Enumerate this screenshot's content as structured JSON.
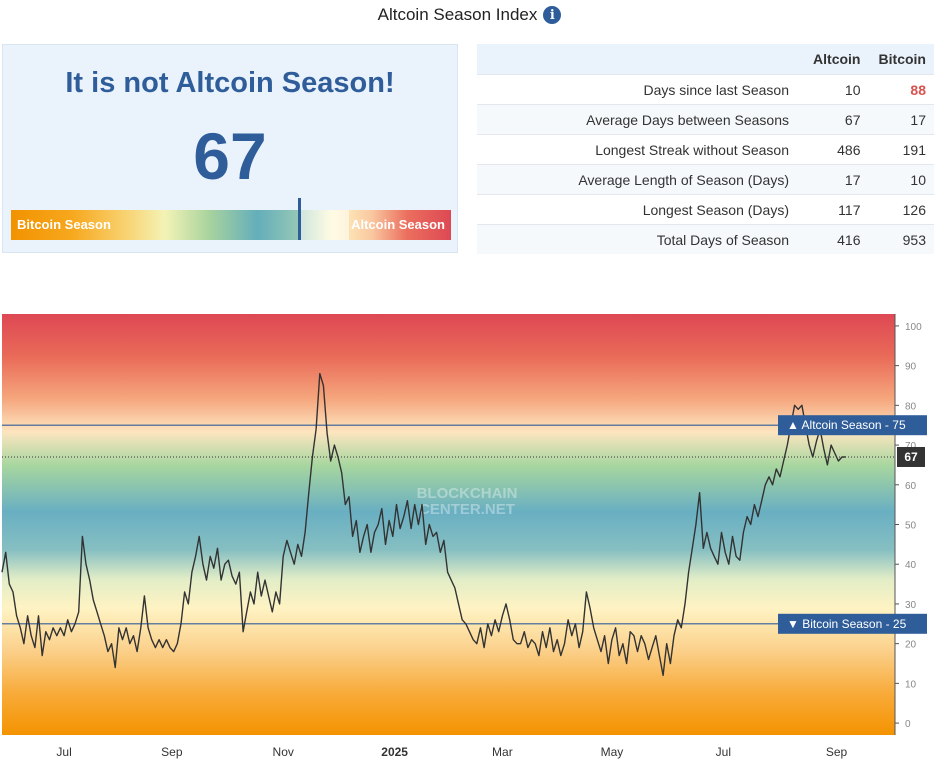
{
  "page": {
    "title": "Altcoin Season Index",
    "info_icon": "info-icon"
  },
  "status": {
    "headline": "It is not Altcoin Season!",
    "index_value": "67",
    "gauge": {
      "left_label": "Bitcoin Season",
      "right_label": "Altcoin Season",
      "value": 67,
      "min": 0,
      "max": 100,
      "colors": {
        "bitcoin": "#f29200",
        "altcoin": "#de4854",
        "marker": "#2f5d9a"
      }
    }
  },
  "stats": {
    "columns": [
      "",
      "Altcoin",
      "Bitcoin"
    ],
    "rows": [
      {
        "label": "Days since last Season",
        "altcoin": "10",
        "bitcoin": "88",
        "bitcoin_highlight": true
      },
      {
        "label": "Average Days between Seasons",
        "altcoin": "67",
        "bitcoin": "17"
      },
      {
        "label": "Longest Streak without Season",
        "altcoin": "486",
        "bitcoin": "191"
      },
      {
        "label": "Average Length of Season (Days)",
        "altcoin": "17",
        "bitcoin": "10"
      },
      {
        "label": "Longest Season (Days)",
        "altcoin": "117",
        "bitcoin": "126"
      },
      {
        "label": "Total Days of Season",
        "altcoin": "416",
        "bitcoin": "953"
      }
    ]
  },
  "chart_data": {
    "type": "line",
    "title": "Altcoin Season Index",
    "ylim": [
      0,
      100
    ],
    "y_ticks": [
      0,
      10,
      20,
      30,
      40,
      50,
      60,
      70,
      80,
      90,
      100
    ],
    "x_range_days": [
      0,
      489
    ],
    "x_tick_labels": [
      {
        "label": "Jul",
        "day": 34,
        "bold": false
      },
      {
        "label": "Sep",
        "day": 93,
        "bold": false
      },
      {
        "label": "Nov",
        "day": 154,
        "bold": false
      },
      {
        "label": "2025",
        "day": 215,
        "bold": true
      },
      {
        "label": "Mar",
        "day": 274,
        "bold": false
      },
      {
        "label": "May",
        "day": 334,
        "bold": false
      },
      {
        "label": "Jul",
        "day": 395,
        "bold": false
      },
      {
        "label": "Sep",
        "day": 457,
        "bold": false
      }
    ],
    "reference_lines": [
      {
        "label": "▲ Altcoin Season - 75",
        "value": 75
      },
      {
        "label": "▼ Bitcoin Season - 25",
        "value": 25
      }
    ],
    "current_value": {
      "label": "67",
      "value": 67
    },
    "watermark": [
      "BLOCKCHAIN",
      "CENTER.NET"
    ],
    "series": [
      {
        "name": "Altcoin Season Index",
        "color": "#333333",
        "points": [
          [
            0,
            38
          ],
          [
            2,
            43
          ],
          [
            4,
            35
          ],
          [
            6,
            33
          ],
          [
            8,
            27
          ],
          [
            10,
            24
          ],
          [
            12,
            20
          ],
          [
            14,
            27
          ],
          [
            16,
            22
          ],
          [
            18,
            19
          ],
          [
            20,
            27
          ],
          [
            22,
            17
          ],
          [
            24,
            23
          ],
          [
            26,
            21
          ],
          [
            28,
            24
          ],
          [
            30,
            22
          ],
          [
            32,
            24
          ],
          [
            34,
            22
          ],
          [
            36,
            26
          ],
          [
            38,
            23
          ],
          [
            40,
            25
          ],
          [
            42,
            28
          ],
          [
            44,
            47
          ],
          [
            46,
            40
          ],
          [
            48,
            36
          ],
          [
            50,
            31
          ],
          [
            52,
            28
          ],
          [
            54,
            25
          ],
          [
            56,
            22
          ],
          [
            58,
            18
          ],
          [
            60,
            20
          ],
          [
            62,
            14
          ],
          [
            64,
            24
          ],
          [
            66,
            21
          ],
          [
            68,
            24
          ],
          [
            70,
            20
          ],
          [
            72,
            22
          ],
          [
            74,
            18
          ],
          [
            76,
            24
          ],
          [
            78,
            32
          ],
          [
            80,
            24
          ],
          [
            82,
            21
          ],
          [
            84,
            19
          ],
          [
            86,
            21
          ],
          [
            88,
            19
          ],
          [
            90,
            21
          ],
          [
            92,
            19
          ],
          [
            94,
            18
          ],
          [
            96,
            20
          ],
          [
            98,
            25
          ],
          [
            100,
            33
          ],
          [
            102,
            30
          ],
          [
            104,
            38
          ],
          [
            106,
            42
          ],
          [
            108,
            47
          ],
          [
            110,
            40
          ],
          [
            112,
            36
          ],
          [
            114,
            42
          ],
          [
            116,
            39
          ],
          [
            118,
            44
          ],
          [
            120,
            36
          ],
          [
            122,
            40
          ],
          [
            124,
            41
          ],
          [
            126,
            37
          ],
          [
            128,
            35
          ],
          [
            130,
            38
          ],
          [
            132,
            23
          ],
          [
            134,
            28
          ],
          [
            136,
            33
          ],
          [
            138,
            30
          ],
          [
            140,
            38
          ],
          [
            142,
            32
          ],
          [
            144,
            36
          ],
          [
            146,
            32
          ],
          [
            148,
            28
          ],
          [
            150,
            33
          ],
          [
            152,
            30
          ],
          [
            154,
            42
          ],
          [
            156,
            46
          ],
          [
            158,
            43
          ],
          [
            160,
            40
          ],
          [
            162,
            45
          ],
          [
            164,
            42
          ],
          [
            166,
            48
          ],
          [
            168,
            58
          ],
          [
            170,
            67
          ],
          [
            172,
            74
          ],
          [
            174,
            88
          ],
          [
            176,
            85
          ],
          [
            178,
            73
          ],
          [
            180,
            66
          ],
          [
            182,
            70
          ],
          [
            184,
            67
          ],
          [
            186,
            63
          ],
          [
            188,
            55
          ],
          [
            190,
            57
          ],
          [
            192,
            47
          ],
          [
            194,
            51
          ],
          [
            196,
            43
          ],
          [
            198,
            47
          ],
          [
            200,
            50
          ],
          [
            202,
            43
          ],
          [
            204,
            48
          ],
          [
            206,
            50
          ],
          [
            208,
            54
          ],
          [
            210,
            45
          ],
          [
            212,
            51
          ],
          [
            214,
            47
          ],
          [
            216,
            55
          ],
          [
            218,
            49
          ],
          [
            220,
            52
          ],
          [
            222,
            56
          ],
          [
            224,
            49
          ],
          [
            226,
            55
          ],
          [
            228,
            50
          ],
          [
            230,
            55
          ],
          [
            232,
            45
          ],
          [
            234,
            50
          ],
          [
            236,
            47
          ],
          [
            238,
            48
          ],
          [
            240,
            43
          ],
          [
            242,
            46
          ],
          [
            244,
            38
          ],
          [
            246,
            36
          ],
          [
            248,
            34
          ],
          [
            250,
            30
          ],
          [
            252,
            26
          ],
          [
            254,
            25
          ],
          [
            256,
            23
          ],
          [
            258,
            21
          ],
          [
            260,
            20
          ],
          [
            262,
            24
          ],
          [
            264,
            19
          ],
          [
            266,
            25
          ],
          [
            268,
            22
          ],
          [
            270,
            26
          ],
          [
            272,
            23
          ],
          [
            274,
            27
          ],
          [
            276,
            30
          ],
          [
            278,
            26
          ],
          [
            280,
            21
          ],
          [
            282,
            20
          ],
          [
            284,
            20
          ],
          [
            286,
            23
          ],
          [
            288,
            19
          ],
          [
            290,
            21
          ],
          [
            292,
            20
          ],
          [
            294,
            17
          ],
          [
            296,
            23
          ],
          [
            298,
            19
          ],
          [
            300,
            24
          ],
          [
            302,
            18
          ],
          [
            304,
            21
          ],
          [
            306,
            17
          ],
          [
            308,
            20
          ],
          [
            310,
            26
          ],
          [
            312,
            22
          ],
          [
            314,
            25
          ],
          [
            316,
            19
          ],
          [
            318,
            23
          ],
          [
            320,
            33
          ],
          [
            322,
            29
          ],
          [
            324,
            24
          ],
          [
            326,
            21
          ],
          [
            328,
            18
          ],
          [
            330,
            22
          ],
          [
            332,
            15
          ],
          [
            334,
            21
          ],
          [
            336,
            24
          ],
          [
            338,
            17
          ],
          [
            340,
            20
          ],
          [
            342,
            15
          ],
          [
            344,
            23
          ],
          [
            346,
            22
          ],
          [
            348,
            18
          ],
          [
            350,
            22
          ],
          [
            352,
            20
          ],
          [
            354,
            16
          ],
          [
            356,
            19
          ],
          [
            358,
            22
          ],
          [
            360,
            17
          ],
          [
            362,
            12
          ],
          [
            364,
            20
          ],
          [
            366,
            15
          ],
          [
            368,
            22
          ],
          [
            370,
            26
          ],
          [
            372,
            24
          ],
          [
            374,
            30
          ],
          [
            376,
            38
          ],
          [
            378,
            44
          ],
          [
            380,
            50
          ],
          [
            382,
            58
          ],
          [
            384,
            44
          ],
          [
            386,
            48
          ],
          [
            388,
            44
          ],
          [
            390,
            42
          ],
          [
            392,
            40
          ],
          [
            394,
            48
          ],
          [
            396,
            43
          ],
          [
            398,
            40
          ],
          [
            400,
            47
          ],
          [
            402,
            42
          ],
          [
            404,
            41
          ],
          [
            406,
            48
          ],
          [
            408,
            52
          ],
          [
            410,
            50
          ],
          [
            412,
            55
          ],
          [
            414,
            52
          ],
          [
            416,
            56
          ],
          [
            418,
            60
          ],
          [
            420,
            62
          ],
          [
            422,
            60
          ],
          [
            424,
            64
          ],
          [
            426,
            62
          ],
          [
            428,
            66
          ],
          [
            430,
            70
          ],
          [
            432,
            75
          ],
          [
            434,
            80
          ],
          [
            436,
            79
          ],
          [
            438,
            80
          ],
          [
            440,
            75
          ],
          [
            442,
            70
          ],
          [
            444,
            67
          ],
          [
            446,
            71
          ],
          [
            448,
            74
          ],
          [
            450,
            69
          ],
          [
            452,
            65
          ],
          [
            454,
            70
          ],
          [
            456,
            68
          ],
          [
            458,
            66
          ],
          [
            460,
            67
          ],
          [
            462,
            67
          ]
        ]
      }
    ]
  }
}
